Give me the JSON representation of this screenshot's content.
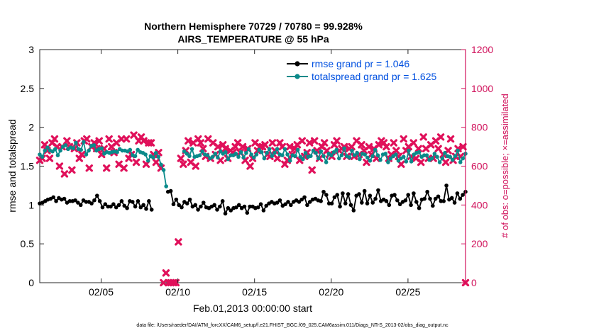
{
  "chart_data": {
    "type": "line",
    "title": "Northern Hemisphere 70729 / 70780 = 99.928%",
    "subtitle": "AIRS_TEMPERATURE @ 55 hPa",
    "xlabel": "Feb.01,2013 00:00:00 start",
    "ylabel_left": "rmse and totalspread",
    "ylabel_right": "# of obs: o=possible; ×=assimilated",
    "footer": "data file: /Users/raeder/DAI/ATM_forcXX/CAM6_setup/f.e21.FHIST_BGC.f09_025.CAM6assim.011/Diags_NTrS_2013-02/obs_diag_output.nc",
    "xlim": [
      1,
      28.75
    ],
    "ylim_left": [
      0,
      3
    ],
    "ylim_right": [
      0,
      1200
    ],
    "x_ticks": [
      5,
      10,
      15,
      20,
      25
    ],
    "x_tick_labels": [
      "02/05",
      "02/10",
      "02/15",
      "02/20",
      "02/25"
    ],
    "y_left_ticks": [
      0,
      0.5,
      1,
      1.5,
      2,
      2.5,
      3
    ],
    "y_left_tick_labels": [
      "0",
      "0.5",
      "1",
      "1.5",
      "2",
      "2.5",
      "3"
    ],
    "y_right_ticks": [
      0,
      200,
      400,
      600,
      800,
      1000,
      1200
    ],
    "y_right_tick_labels": [
      "0",
      "200",
      "400",
      "600",
      "800",
      "1000",
      "1200"
    ],
    "legend_position": "top-right",
    "colors": {
      "rmse": "#000000",
      "spread": "#0a8a8a",
      "obs": "#e0105a",
      "legend_text": "#0050e0",
      "right_axis": "#d0105a"
    },
    "series": [
      {
        "name": "rmse grand pr = 1.046",
        "key": "rmse",
        "values": [
          1.02,
          1.03,
          1.05,
          1.07,
          1.08,
          1.1,
          1.05,
          1.09,
          1.07,
          1.08,
          1.03,
          1.05,
          1.05,
          1.06,
          1.03,
          1.0,
          1.06,
          1.04,
          1.04,
          1.02,
          1.06,
          1.12,
          1.05,
          0.97,
          1.01,
          0.98,
          0.98,
          1.01,
          0.97,
          1.0,
          1.05,
          0.99,
          0.96,
          1.05,
          1.04,
          0.98,
          1.05,
          0.97,
          1.0,
          0.95,
          1.05,
          0.94,
          null,
          null,
          null,
          null,
          null,
          1.17,
          1.18,
          1.01,
          1.07,
          1.0,
          0.97,
          1.04,
          1.02,
          1.07,
          0.98,
          1.0,
          0.94,
          0.98,
          1.03,
          0.97,
          0.96,
          0.98,
          1.0,
          0.94,
          0.98,
          1.05,
          0.89,
          0.96,
          0.93,
          0.96,
          0.97,
          1.0,
          0.96,
          0.98,
          0.9,
          0.98,
          0.98,
          0.96,
          0.97,
          1.01,
          0.93,
          0.99,
          1.02,
          1.04,
          1.02,
          1.03,
          1.06,
          0.99,
          1.01,
          1.04,
          1.0,
          1.04,
          1.06,
          1.04,
          1.07,
          1.1,
          1.0,
          1.04,
          1.07,
          1.08,
          1.06,
          1.05,
          1.17,
          1.13,
          1.02,
          1.02,
          1.1,
          1.13,
          0.98,
          1.15,
          1.02,
          1.14,
          1.0,
          0.93,
          1.12,
          1.14,
          1.03,
          1.18,
          1.02,
          1.12,
          1.03,
          1.08,
          1.19,
          1.05,
          1.07,
          1.05,
          1.0,
          1.12,
          1.13,
          1.06,
          1.01,
          1.04,
          1.06,
          1.13,
          1.0,
          1.15,
          1.04,
          0.96,
          1.07,
          1.08,
          1.17,
          1.08,
          0.99,
          1.08,
          1.11,
          1.05,
          1.05,
          1.25,
          1.07,
          1.09,
          1.03,
          1.15,
          1.08,
          1.13,
          1.17
        ]
      },
      {
        "name": "totalspread grand pr = 1.625",
        "key": "spread",
        "values": [
          1.65,
          1.62,
          1.7,
          1.74,
          1.7,
          1.69,
          1.72,
          1.64,
          1.7,
          1.75,
          1.77,
          1.72,
          1.74,
          1.73,
          1.8,
          1.72,
          1.71,
          1.81,
          1.65,
          1.7,
          1.76,
          1.77,
          1.7,
          1.72,
          1.73,
          1.66,
          1.68,
          1.67,
          1.68,
          1.69,
          1.68,
          1.72,
          1.7,
          1.7,
          1.69,
          1.71,
          1.64,
          1.63,
          1.71,
          1.68,
          1.67,
          1.65,
          1.57,
          1.63,
          1.61,
          1.67,
          1.62,
          1.52,
          1.45,
          1.24,
          null,
          null,
          null,
          null,
          null,
          null,
          1.69,
          1.66,
          1.63,
          1.72,
          1.62,
          1.63,
          1.64,
          1.69,
          1.65,
          1.64,
          1.6,
          1.62,
          1.66,
          1.61,
          1.69,
          1.66,
          1.68,
          1.59,
          1.64,
          1.64,
          1.66,
          1.62,
          1.68,
          1.61,
          1.67,
          1.72,
          1.65,
          1.61,
          1.65,
          1.71,
          1.68,
          1.6,
          1.67,
          1.72,
          1.63,
          1.67,
          1.72,
          1.65,
          1.64,
          1.72,
          1.65,
          1.57,
          1.64,
          1.63,
          1.71,
          1.62,
          1.59,
          1.67,
          1.62,
          1.63,
          1.7,
          1.67,
          1.6,
          1.69,
          1.63,
          1.55,
          1.66,
          1.64,
          1.68,
          1.71,
          1.6,
          1.64,
          1.73,
          1.63,
          1.61,
          1.7,
          1.64,
          1.67,
          1.59,
          1.66,
          1.65,
          1.61,
          1.57,
          1.63,
          1.71,
          1.64,
          1.58,
          1.65,
          1.66,
          1.55,
          1.6,
          1.63,
          1.65,
          1.57,
          1.6,
          1.62,
          1.56,
          1.7,
          1.56,
          1.65,
          1.67,
          1.68,
          1.62,
          1.64,
          1.64,
          1.58,
          1.6,
          1.66,
          1.62,
          1.55,
          1.6,
          1.67,
          1.63,
          1.62,
          1.58,
          1.63,
          1.7,
          1.55,
          1.6,
          1.66
        ]
      },
      {
        "name": "# of obs assimilated",
        "key": "obs",
        "values": [
          630,
          640,
          710,
          680,
          640,
          720,
          740,
          700,
          600,
          700,
          560,
          730,
          700,
          580,
          690,
          720,
          640,
          660,
          730,
          740,
          590,
          700,
          720,
          690,
          730,
          660,
          690,
          590,
          740,
          700,
          670,
          720,
          610,
          740,
          590,
          740,
          640,
          660,
          760,
          620,
          730,
          750,
          730,
          610,
          720,
          720,
          660,
          620,
          670,
          590,
          0,
          50,
          0,
          0,
          0,
          0,
          210,
          640,
          610,
          680,
          730,
          620,
          720,
          600,
          740,
          720,
          690,
          650,
          740,
          640,
          720,
          660,
          700,
          630,
          710,
          690,
          640,
          680,
          670,
          700,
          720,
          670,
          700,
          630,
          690,
          600,
          640,
          720,
          680,
          700,
          700,
          710,
          660,
          650,
          720,
          680,
          640,
          720,
          700,
          610,
          630,
          700,
          660,
          690,
          710,
          630,
          730,
          650,
          670,
          720,
          580,
          730,
          680,
          640,
          700,
          720,
          680,
          660,
          650,
          710,
          730,
          680,
          690,
          700,
          650,
          690,
          700,
          650,
          730,
          660,
          710,
          680,
          620,
          700,
          660,
          690,
          640,
          710,
          730,
          720,
          700,
          640,
          660,
          720,
          680,
          650,
          610,
          740,
          680,
          700,
          650,
          720,
          640,
          690,
          620,
          750,
          690,
          640,
          710,
          640,
          730,
          690,
          750,
          660,
          620,
          680,
          740,
          630,
          650,
          690,
          650,
          700,
          0
        ]
      }
    ]
  }
}
